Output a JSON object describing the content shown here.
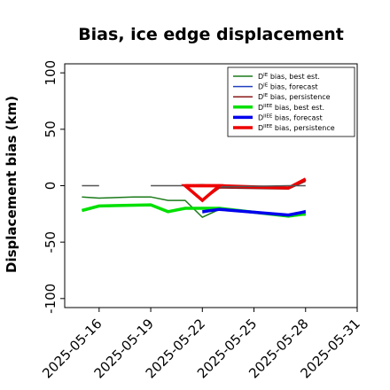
{
  "chart_data": {
    "type": "line",
    "title": "Bias, ice edge displacement",
    "xlabel": "",
    "ylabel": "Displacement bias (km)",
    "ylim": [
      -108,
      108
    ],
    "xlim": [
      "2025-05-14",
      "2025-05-31"
    ],
    "grid": false,
    "legend_placement": "top-right",
    "x_ticks": [
      "2025-05-16",
      "2025-05-19",
      "2025-05-22",
      "2025-05-25",
      "2025-05-28",
      "2025-05-31"
    ],
    "highlighted_x_tick": "2025-05-22",
    "highlight_color": "#228b22",
    "y_ticks": [
      100,
      50,
      0,
      -50,
      -100
    ],
    "series": [
      {
        "name": "D^IE bias, best est.",
        "label_base": "D",
        "label_sup": "IE",
        "label_rest": " bias, best est.",
        "color": "#1a7a1a",
        "width": 1.5,
        "points": [
          [
            "2025-05-15",
            -10
          ],
          [
            "2025-05-16",
            -11
          ],
          [
            "2025-05-18",
            -10
          ],
          [
            "2025-05-19",
            -10
          ],
          [
            "2025-05-20",
            -13
          ],
          [
            "2025-05-21",
            -13
          ],
          [
            "2025-05-22",
            -28
          ],
          [
            "2025-05-23",
            -21
          ],
          [
            "2025-05-27",
            -26
          ],
          [
            "2025-05-28",
            -26
          ]
        ]
      },
      {
        "name": "D^IE bias, forecast",
        "label_base": "D",
        "label_sup": "IE",
        "label_rest": " bias, forecast",
        "color": "#1f3fbf",
        "width": 1.5,
        "points": [
          [
            "2025-05-22",
            -24
          ],
          [
            "2025-05-23",
            -21
          ],
          [
            "2025-05-27",
            -27
          ],
          [
            "2025-05-28",
            -22
          ]
        ]
      },
      {
        "name": "D^IE bias, persistence",
        "label_base": "D",
        "label_sup": "IE",
        "label_rest": " bias, persistence",
        "color": "#8b1a1a",
        "width": 1.5,
        "points": [
          [
            "2025-05-22",
            -13
          ],
          [
            "2025-05-23",
            -2
          ],
          [
            "2025-05-27",
            -3
          ],
          [
            "2025-05-28",
            4
          ]
        ]
      },
      {
        "name": "D^IIEE bias, best est.",
        "label_base": "D",
        "label_sup": "IIEE",
        "label_rest": " bias, best est.",
        "color": "#00e000",
        "width": 3.5,
        "points": [
          [
            "2025-05-15",
            -22
          ],
          [
            "2025-05-16",
            -18
          ],
          [
            "2025-05-19",
            -17
          ],
          [
            "2025-05-20",
            -23
          ],
          [
            "2025-05-21",
            -20
          ],
          [
            "2025-05-22",
            -20
          ],
          [
            "2025-05-23",
            -20
          ],
          [
            "2025-05-27",
            -27
          ],
          [
            "2025-05-28",
            -25
          ]
        ]
      },
      {
        "name": "D^IIEE bias, forecast",
        "label_base": "D",
        "label_sup": "IIEE",
        "label_rest": " bias, forecast",
        "color": "#0000ee",
        "width": 3.5,
        "points": [
          [
            "2025-05-22",
            -23
          ],
          [
            "2025-05-23",
            -21
          ],
          [
            "2025-05-27",
            -26
          ],
          [
            "2025-05-28",
            -23
          ]
        ]
      },
      {
        "name": "D^IIEE bias, persistence",
        "label_base": "D",
        "label_sup": "IIEE",
        "label_rest": " bias, persistence",
        "color": "#ee0000",
        "width": 3.5,
        "points": [
          [
            "2025-05-21",
            0
          ],
          [
            "2025-05-22",
            0
          ],
          [
            "2025-05-23",
            0
          ],
          [
            "2025-05-27",
            -2
          ],
          [
            "2025-05-28",
            6
          ]
        ]
      },
      {
        "name": "",
        "color": "#555555",
        "width": 1.5,
        "in_legend": false,
        "points": [
          [
            "2025-05-15",
            0
          ],
          [
            "2025-05-16",
            0
          ]
        ]
      },
      {
        "name": "",
        "color": "#555555",
        "width": 1.5,
        "in_legend": false,
        "points": [
          [
            "2025-05-19",
            0
          ],
          [
            "2025-05-20",
            0
          ],
          [
            "2025-05-21",
            0
          ],
          [
            "2025-05-22",
            1
          ],
          [
            "2025-05-23",
            -1
          ],
          [
            "2025-05-27",
            0
          ],
          [
            "2025-05-28",
            0
          ]
        ]
      }
    ],
    "extra_marks": [
      {
        "kind": "triangle",
        "color": "#ee0000",
        "width": 3.5,
        "points": [
          [
            "2025-05-21",
            0
          ],
          [
            "2025-05-23",
            0
          ],
          [
            "2025-05-22",
            -13
          ]
        ]
      }
    ]
  }
}
